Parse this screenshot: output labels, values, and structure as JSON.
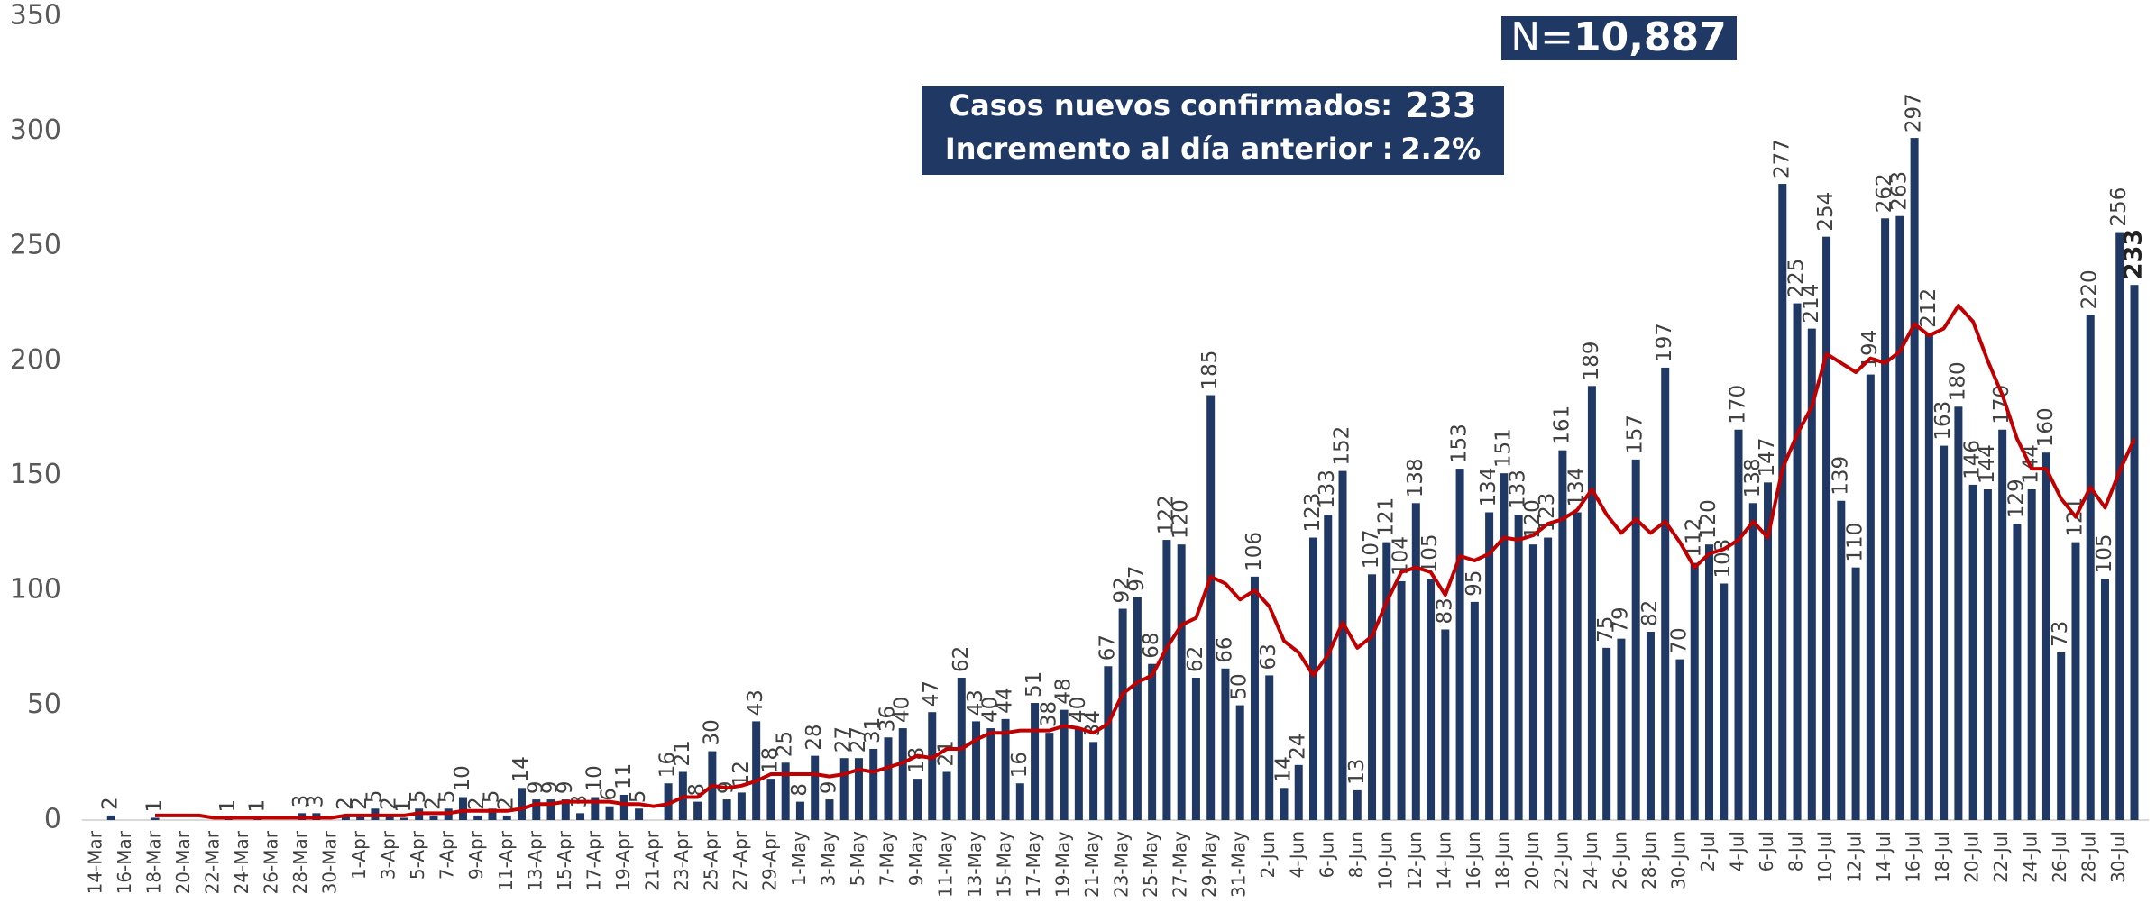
{
  "chart_data": {
    "type": "bar",
    "n_label": "N=",
    "n_value": "10,887",
    "info": [
      {
        "label": "Casos nuevos confirmados:",
        "value": "233"
      },
      {
        "label": "Incremento al día anterior :",
        "value": "2.2%"
      }
    ],
    "categories": [
      "14-Mar",
      null,
      "16-Mar",
      null,
      "18-Mar",
      null,
      "20-Mar",
      null,
      "22-Mar",
      null,
      "24-Mar",
      null,
      "26-Mar",
      null,
      "28-Mar",
      null,
      "30-Mar",
      null,
      "1-Apr",
      null,
      "3-Apr",
      null,
      "5-Apr",
      null,
      "7-Apr",
      null,
      "9-Apr",
      null,
      "11-Apr",
      null,
      "13-Apr",
      null,
      "15-Apr",
      null,
      "17-Apr",
      null,
      "19-Apr",
      null,
      "21-Apr",
      null,
      "23-Apr",
      null,
      "25-Apr",
      null,
      "27-Apr",
      null,
      "29-Apr",
      null,
      "1-May",
      null,
      "3-May",
      null,
      "5-May",
      null,
      "7-May",
      null,
      "9-May",
      null,
      "11-May",
      null,
      "13-May",
      null,
      "15-May",
      null,
      "17-May",
      null,
      "19-May",
      null,
      "21-May",
      null,
      "23-May",
      null,
      "25-May",
      null,
      "27-May",
      null,
      "29-May",
      null,
      "31-May",
      null,
      "2-Jun",
      null,
      "4-Jun",
      null,
      "6-Jun",
      null,
      "8-Jun",
      null,
      "10-Jun",
      null,
      "12-Jun",
      null,
      "14-Jun",
      null,
      "16-Jun",
      null,
      "18-Jun",
      null,
      "20-Jun",
      null,
      "22-Jun",
      null,
      "24-Jun",
      null,
      "26-Jun",
      null,
      "28-Jun",
      null,
      "30-Jun",
      null,
      "2-Jul",
      null,
      "4-Jul",
      null,
      "6-Jul",
      null,
      "8-Jul",
      null,
      "10-Jul",
      null,
      "12-Jul",
      null,
      "14-Jul",
      null,
      "16-Jul",
      null,
      "18-Jul",
      null,
      "20-Jul",
      null,
      "22-Jul",
      null,
      "24-Jul",
      null,
      "26-Jul",
      null,
      "28-Jul",
      null,
      "30-Jul",
      null
    ],
    "series": [
      {
        "type": "bar",
        "color": "#1f3864",
        "values": [
          0,
          2,
          0,
          0,
          1,
          0,
          0,
          0,
          0,
          1,
          0,
          1,
          0,
          0,
          3,
          3,
          0,
          2,
          2,
          5,
          2,
          1,
          5,
          2,
          5,
          10,
          2,
          5,
          2,
          14,
          9,
          9,
          9,
          3,
          10,
          6,
          11,
          5,
          0,
          16,
          21,
          8,
          30,
          9,
          12,
          43,
          18,
          25,
          8,
          28,
          9,
          27,
          27,
          31,
          36,
          40,
          18,
          47,
          21,
          62,
          43,
          40,
          44,
          16,
          51,
          38,
          48,
          40,
          34,
          67,
          92,
          97,
          68,
          122,
          120,
          62,
          185,
          66,
          50,
          106,
          63,
          14,
          24,
          123,
          133,
          152,
          13,
          107,
          121,
          104,
          138,
          105,
          83,
          153,
          95,
          134,
          151,
          133,
          120,
          123,
          161,
          134,
          189,
          75,
          79,
          157,
          82,
          197,
          70,
          112,
          120,
          103,
          170,
          138,
          147,
          277,
          225,
          214,
          254,
          139,
          110,
          194,
          262,
          263,
          297,
          212,
          163,
          180,
          146,
          144,
          170,
          129,
          144,
          160,
          73,
          121,
          220,
          105,
          256,
          233
        ]
      },
      {
        "type": "line",
        "color": "#c00000",
        "values": [
          null,
          null,
          null,
          null,
          2,
          2,
          2,
          2,
          1,
          1,
          1,
          1,
          1,
          1,
          1,
          1,
          1,
          2,
          2,
          2,
          2,
          2,
          3,
          3,
          3,
          4,
          4,
          4,
          4,
          5,
          7,
          7,
          8,
          8,
          8,
          8,
          7,
          7,
          6,
          7,
          10,
          10,
          15,
          14,
          15,
          17,
          20,
          20,
          20,
          20,
          19,
          20,
          22,
          21,
          23,
          25,
          28,
          27,
          31,
          31,
          35,
          38,
          38,
          39,
          39,
          39,
          41,
          40,
          38,
          42,
          55,
          60,
          63,
          75,
          85,
          88,
          106,
          103,
          96,
          100,
          93,
          78,
          73,
          63,
          72,
          86,
          75,
          80,
          95,
          108,
          110,
          108,
          98,
          115,
          113,
          116,
          123,
          122,
          124,
          129,
          131,
          135,
          144,
          133,
          125,
          131,
          125,
          130,
          121,
          110,
          116,
          118,
          122,
          130,
          123,
          153,
          168,
          180,
          203,
          199,
          195,
          201,
          199,
          204,
          216,
          211,
          214,
          224,
          217,
          200,
          185,
          166,
          153,
          153,
          140,
          132,
          145,
          136,
          152,
          166
        ]
      }
    ],
    "ylim": [
      0,
      350
    ],
    "yticks": [
      0,
      50,
      100,
      150,
      200,
      250,
      300,
      350
    ],
    "highlight_last": true
  }
}
